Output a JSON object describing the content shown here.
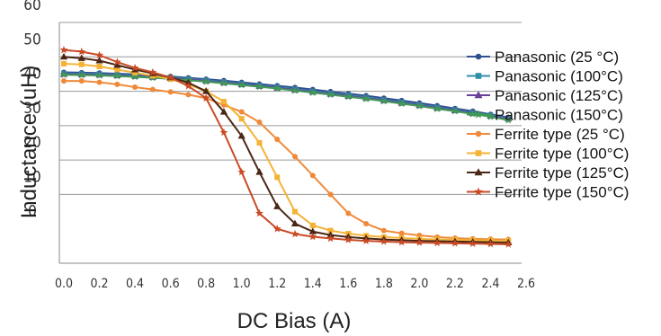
{
  "chart_data": {
    "type": "line",
    "xlabel": "DC Bias (A)",
    "ylabel": "Inductance (uH)",
    "xlim": [
      0.0,
      2.6
    ],
    "ylim": [
      -10,
      60
    ],
    "x_ticks": [
      "0.0",
      "0.2",
      "0.4",
      "0.6",
      "0.8",
      "1.0",
      "1.2",
      "1.4",
      "1.6",
      "1.8",
      "2.0",
      "2.2",
      "2.4",
      "2.6"
    ],
    "y_ticks": [
      "0",
      "10",
      "20",
      "30",
      "40",
      "50",
      "60"
    ],
    "grid": "horizontal",
    "legend": "right",
    "x": [
      0.0,
      0.1,
      0.2,
      0.3,
      0.4,
      0.5,
      0.6,
      0.7,
      0.8,
      0.9,
      1.0,
      1.1,
      1.2,
      1.3,
      1.4,
      1.5,
      1.6,
      1.7,
      1.8,
      1.9,
      2.0,
      2.1,
      2.2,
      2.3,
      2.4,
      2.5
    ],
    "series": [
      {
        "name": "Panasonic  (25 °C)",
        "color": "#2f4f8f",
        "marker": "circle",
        "values": [
          45.5,
          45.4,
          45.3,
          45.1,
          44.9,
          44.6,
          44.3,
          43.9,
          43.5,
          43.1,
          42.6,
          42.1,
          41.6,
          41.1,
          40.5,
          39.9,
          39.3,
          38.7,
          38.0,
          37.3,
          36.6,
          35.8,
          35.0,
          34.2,
          33.3,
          32.4
        ]
      },
      {
        "name": "Panasonic  (100°C)",
        "color": "#2e8fa8",
        "marker": "square",
        "values": [
          45.2,
          45.1,
          45.0,
          44.8,
          44.6,
          44.3,
          44.0,
          43.6,
          43.2,
          42.7,
          42.2,
          41.7,
          41.2,
          40.6,
          40.0,
          39.4,
          38.8,
          38.2,
          37.5,
          36.8,
          36.1,
          35.3,
          34.6,
          33.8,
          33.0,
          32.2
        ]
      },
      {
        "name": "Panasonic  (125°C)",
        "color": "#6a3d9a",
        "marker": "triangle",
        "values": [
          45.0,
          44.9,
          44.8,
          44.6,
          44.4,
          44.1,
          43.8,
          43.4,
          43.0,
          42.5,
          42.0,
          41.5,
          41.0,
          40.4,
          39.8,
          39.2,
          38.6,
          38.0,
          37.3,
          36.6,
          35.9,
          35.1,
          34.4,
          33.6,
          32.8,
          32.0
        ]
      },
      {
        "name": "Panasonic  (150°C)",
        "color": "#3e9b55",
        "marker": "star",
        "values": [
          44.8,
          44.7,
          44.6,
          44.4,
          44.2,
          43.9,
          43.6,
          43.2,
          42.8,
          42.3,
          41.8,
          41.3,
          40.8,
          40.2,
          39.6,
          39.0,
          38.4,
          37.8,
          37.1,
          36.4,
          35.7,
          34.9,
          34.2,
          33.4,
          32.6,
          31.6
        ]
      },
      {
        "name": "Ferrite type (25 °C)",
        "color": "#f08a3a",
        "marker": "circle",
        "values": [
          43.0,
          43.0,
          42.6,
          42.0,
          41.2,
          40.5,
          39.8,
          39.0,
          38.0,
          36.0,
          34.0,
          31.0,
          26.0,
          21.0,
          15.5,
          10.0,
          4.5,
          1.5,
          -0.5,
          -1.3,
          -1.9,
          -2.4,
          -2.7,
          -2.9,
          -3.0,
          -3.1
        ]
      },
      {
        "name": "Ferrite type (100°C)",
        "color": "#f5b335",
        "marker": "square",
        "values": [
          48.0,
          47.8,
          47.2,
          46.3,
          45.4,
          44.5,
          43.5,
          42.0,
          40.0,
          37.0,
          32.0,
          25.0,
          15.0,
          5.0,
          1.0,
          -0.5,
          -1.4,
          -2.0,
          -2.4,
          -2.7,
          -2.9,
          -3.1,
          -3.2,
          -3.3,
          -3.4,
          -3.5
        ]
      },
      {
        "name": "Ferrite type (125°C)",
        "color": "#4a2615",
        "marker": "triangle",
        "values": [
          50.0,
          49.6,
          48.9,
          47.6,
          46.3,
          45.2,
          44.0,
          42.5,
          40.0,
          34.0,
          27.0,
          16.5,
          6.5,
          1.5,
          -0.8,
          -1.8,
          -2.4,
          -2.8,
          -3.1,
          -3.3,
          -3.5,
          -3.6,
          -3.7,
          -3.8,
          -3.9,
          -4.0
        ]
      },
      {
        "name": "Ferrite type (150°C)",
        "color": "#c94b26",
        "marker": "star",
        "values": [
          52.0,
          51.5,
          50.5,
          48.5,
          46.8,
          45.5,
          44.0,
          41.5,
          38.0,
          28.0,
          16.5,
          4.5,
          0.0,
          -1.5,
          -2.3,
          -2.8,
          -3.2,
          -3.5,
          -3.7,
          -3.9,
          -4.0,
          -4.1,
          -4.2,
          -4.3,
          -4.4,
          -4.5
        ]
      }
    ]
  }
}
